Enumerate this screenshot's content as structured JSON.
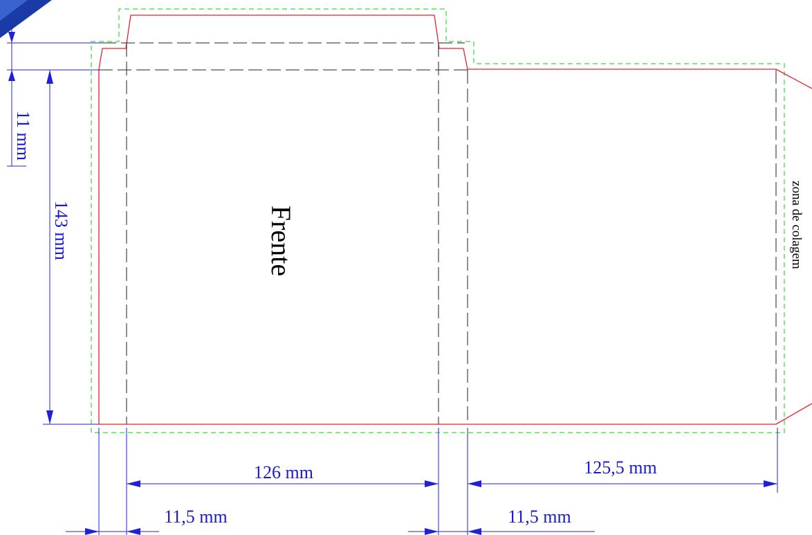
{
  "colors": {
    "cut_line": "#e8202a",
    "bleed_line": "#33dd33",
    "fold_line": "#222222",
    "dimension": "#2020d8",
    "corner_mark": "#1a3aa8"
  },
  "labels": {
    "front_panel": "Frente",
    "glue_zone": "zona de colagem"
  },
  "dimensions": {
    "tab_height": "11 mm",
    "panel_height": "143 mm",
    "front_width": "126 mm",
    "back_width": "125,5 mm",
    "spine_left": "11,5 mm",
    "spine_right": "11,5 mm"
  }
}
